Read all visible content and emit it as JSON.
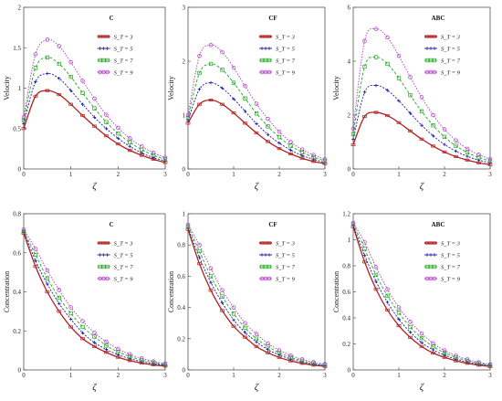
{
  "legend_entries": [
    "S_T = 3",
    "S_T = 5",
    "S_T = 7",
    "S_T = 9"
  ],
  "colors": [
    "#b22222",
    "#1a1aa8",
    "#1fa81f",
    "#b03ac8"
  ],
  "chart_data": [
    {
      "type": "line",
      "title": "C",
      "xlabel": "ζ",
      "ylabel": "Velocity",
      "xlim": [
        0,
        3
      ],
      "ylim": [
        0,
        2
      ],
      "xticks": [
        "0",
        "1",
        "2",
        "3"
      ],
      "yticks": [
        "0",
        "0.5",
        "1",
        "1.5",
        "2"
      ],
      "x": [
        0,
        0.25,
        0.5,
        0.75,
        1.0,
        1.25,
        1.5,
        1.75,
        2.0,
        2.25,
        2.5,
        2.75,
        3.0
      ],
      "series": [
        {
          "name": "S_T = 3",
          "values": [
            0.5,
            0.9,
            0.97,
            0.92,
            0.8,
            0.66,
            0.53,
            0.41,
            0.31,
            0.23,
            0.17,
            0.12,
            0.08
          ]
        },
        {
          "name": "S_T = 5",
          "values": [
            0.56,
            1.08,
            1.18,
            1.12,
            0.97,
            0.8,
            0.64,
            0.5,
            0.38,
            0.28,
            0.2,
            0.14,
            0.1
          ]
        },
        {
          "name": "S_T = 7",
          "values": [
            0.6,
            1.25,
            1.38,
            1.3,
            1.14,
            0.94,
            0.75,
            0.58,
            0.44,
            0.33,
            0.24,
            0.17,
            0.12
          ]
        },
        {
          "name": "S_T = 9",
          "values": [
            0.64,
            1.42,
            1.6,
            1.52,
            1.32,
            1.09,
            0.87,
            0.67,
            0.51,
            0.38,
            0.28,
            0.2,
            0.14
          ]
        }
      ]
    },
    {
      "type": "line",
      "title": "CF",
      "xlabel": "ζ",
      "ylabel": "Velocity",
      "xlim": [
        0,
        3
      ],
      "ylim": [
        0,
        3
      ],
      "xticks": [
        "0",
        "1",
        "2",
        "3"
      ],
      "yticks": [
        "0",
        "1",
        "2",
        "3"
      ],
      "x": [
        0,
        0.25,
        0.5,
        0.75,
        1.0,
        1.25,
        1.5,
        1.75,
        2.0,
        2.25,
        2.5,
        2.75,
        3.0
      ],
      "series": [
        {
          "name": "S_T = 3",
          "values": [
            0.85,
            1.2,
            1.28,
            1.2,
            1.04,
            0.85,
            0.67,
            0.51,
            0.38,
            0.28,
            0.2,
            0.14,
            0.1
          ]
        },
        {
          "name": "S_T = 5",
          "values": [
            0.9,
            1.48,
            1.6,
            1.5,
            1.3,
            1.07,
            0.84,
            0.64,
            0.48,
            0.35,
            0.25,
            0.18,
            0.12
          ]
        },
        {
          "name": "S_T = 7",
          "values": [
            0.95,
            1.78,
            1.95,
            1.84,
            1.6,
            1.31,
            1.03,
            0.79,
            0.59,
            0.43,
            0.31,
            0.22,
            0.15
          ]
        },
        {
          "name": "S_T = 9",
          "values": [
            1.0,
            2.1,
            2.3,
            2.17,
            1.88,
            1.54,
            1.21,
            0.93,
            0.69,
            0.5,
            0.36,
            0.26,
            0.18
          ]
        }
      ]
    },
    {
      "type": "line",
      "title": "ABC",
      "xlabel": "ζ",
      "ylabel": "Velocity",
      "xlim": [
        0,
        3
      ],
      "ylim": [
        0,
        6
      ],
      "xticks": [
        "0",
        "1",
        "2",
        "3"
      ],
      "yticks": [
        "0",
        "2",
        "4",
        "6"
      ],
      "x": [
        0,
        0.25,
        0.5,
        0.75,
        1.0,
        1.25,
        1.5,
        1.75,
        2.0,
        2.25,
        2.5,
        2.75,
        3.0
      ],
      "series": [
        {
          "name": "S_T = 3",
          "values": [
            0.9,
            1.95,
            2.1,
            1.98,
            1.72,
            1.41,
            1.11,
            0.85,
            0.63,
            0.46,
            0.33,
            0.23,
            0.16
          ]
        },
        {
          "name": "S_T = 5",
          "values": [
            1.1,
            2.85,
            3.1,
            2.92,
            2.53,
            2.07,
            1.62,
            1.23,
            0.91,
            0.66,
            0.47,
            0.33,
            0.23
          ]
        },
        {
          "name": "S_T = 7",
          "values": [
            1.3,
            3.8,
            4.15,
            3.9,
            3.37,
            2.74,
            2.14,
            1.62,
            1.19,
            0.86,
            0.61,
            0.43,
            0.3
          ]
        },
        {
          "name": "S_T = 9",
          "values": [
            1.5,
            4.75,
            5.2,
            4.88,
            4.2,
            3.41,
            2.66,
            2.0,
            1.47,
            1.06,
            0.75,
            0.53,
            0.37
          ]
        }
      ]
    },
    {
      "type": "line",
      "title": "C",
      "xlabel": "ζ",
      "ylabel": "Concentration",
      "xlim": [
        0,
        3
      ],
      "ylim": [
        0,
        0.8
      ],
      "xticks": [
        "0",
        "1",
        "2",
        "3"
      ],
      "yticks": [
        "0",
        "0.2",
        "0.4",
        "0.6",
        "0.8"
      ],
      "x": [
        0,
        0.25,
        0.5,
        0.75,
        1.0,
        1.25,
        1.5,
        1.75,
        2.0,
        2.25,
        2.5,
        2.75,
        3.0
      ],
      "series": [
        {
          "name": "S_T = 3",
          "values": [
            0.7,
            0.53,
            0.4,
            0.3,
            0.22,
            0.16,
            0.12,
            0.09,
            0.065,
            0.048,
            0.035,
            0.026,
            0.02
          ]
        },
        {
          "name": "S_T = 5",
          "values": [
            0.71,
            0.56,
            0.44,
            0.34,
            0.26,
            0.19,
            0.14,
            0.105,
            0.078,
            0.058,
            0.043,
            0.032,
            0.024
          ]
        },
        {
          "name": "S_T = 7",
          "values": [
            0.71,
            0.59,
            0.47,
            0.37,
            0.29,
            0.22,
            0.17,
            0.125,
            0.093,
            0.069,
            0.051,
            0.038,
            0.028
          ]
        },
        {
          "name": "S_T = 9",
          "values": [
            0.72,
            0.62,
            0.51,
            0.41,
            0.32,
            0.25,
            0.19,
            0.145,
            0.108,
            0.08,
            0.059,
            0.044,
            0.033
          ]
        }
      ]
    },
    {
      "type": "line",
      "title": "CF",
      "xlabel": "ζ",
      "ylabel": "Concentration",
      "xlim": [
        0,
        3
      ],
      "ylim": [
        0,
        1
      ],
      "xticks": [
        "0",
        "1",
        "2",
        "3"
      ],
      "yticks": [
        "0",
        "0.2",
        "0.4",
        "0.6",
        "0.8",
        "1"
      ],
      "x": [
        0,
        0.25,
        0.5,
        0.75,
        1.0,
        1.25,
        1.5,
        1.75,
        2.0,
        2.25,
        2.5,
        2.75,
        3.0
      ],
      "series": [
        {
          "name": "S_T = 3",
          "values": [
            0.9,
            0.68,
            0.51,
            0.38,
            0.28,
            0.21,
            0.15,
            0.11,
            0.08,
            0.058,
            0.042,
            0.031,
            0.023
          ]
        },
        {
          "name": "S_T = 5",
          "values": [
            0.91,
            0.72,
            0.56,
            0.43,
            0.32,
            0.24,
            0.18,
            0.13,
            0.096,
            0.07,
            0.051,
            0.037,
            0.027
          ]
        },
        {
          "name": "S_T = 7",
          "values": [
            0.92,
            0.76,
            0.6,
            0.47,
            0.36,
            0.27,
            0.2,
            0.15,
            0.11,
            0.081,
            0.059,
            0.043,
            0.032
          ]
        },
        {
          "name": "S_T = 9",
          "values": [
            0.93,
            0.8,
            0.65,
            0.51,
            0.4,
            0.3,
            0.23,
            0.17,
            0.126,
            0.093,
            0.068,
            0.05,
            0.037
          ]
        }
      ]
    },
    {
      "type": "line",
      "title": "ABC",
      "xlabel": "ζ",
      "ylabel": "Concentration",
      "xlim": [
        0,
        3
      ],
      "ylim": [
        0,
        1.2
      ],
      "xticks": [
        "0",
        "1",
        "2",
        "3"
      ],
      "yticks": [
        "0",
        "0.2",
        "0.4",
        "0.6",
        "0.8",
        "1",
        "1.2"
      ],
      "x": [
        0,
        0.25,
        0.5,
        0.75,
        1.0,
        1.25,
        1.5,
        1.75,
        2.0,
        2.25,
        2.5,
        2.75,
        3.0
      ],
      "series": [
        {
          "name": "S_T = 3",
          "values": [
            1.1,
            0.83,
            0.62,
            0.46,
            0.34,
            0.25,
            0.18,
            0.13,
            0.097,
            0.07,
            0.051,
            0.037,
            0.027
          ]
        },
        {
          "name": "S_T = 5",
          "values": [
            1.11,
            0.88,
            0.68,
            0.52,
            0.39,
            0.29,
            0.21,
            0.155,
            0.114,
            0.083,
            0.061,
            0.044,
            0.032
          ]
        },
        {
          "name": "S_T = 7",
          "values": [
            1.12,
            0.93,
            0.73,
            0.57,
            0.44,
            0.33,
            0.245,
            0.18,
            0.132,
            0.097,
            0.071,
            0.052,
            0.038
          ]
        },
        {
          "name": "S_T = 9",
          "values": [
            1.13,
            0.98,
            0.79,
            0.62,
            0.48,
            0.37,
            0.28,
            0.205,
            0.15,
            0.11,
            0.081,
            0.059,
            0.043
          ]
        }
      ]
    }
  ]
}
